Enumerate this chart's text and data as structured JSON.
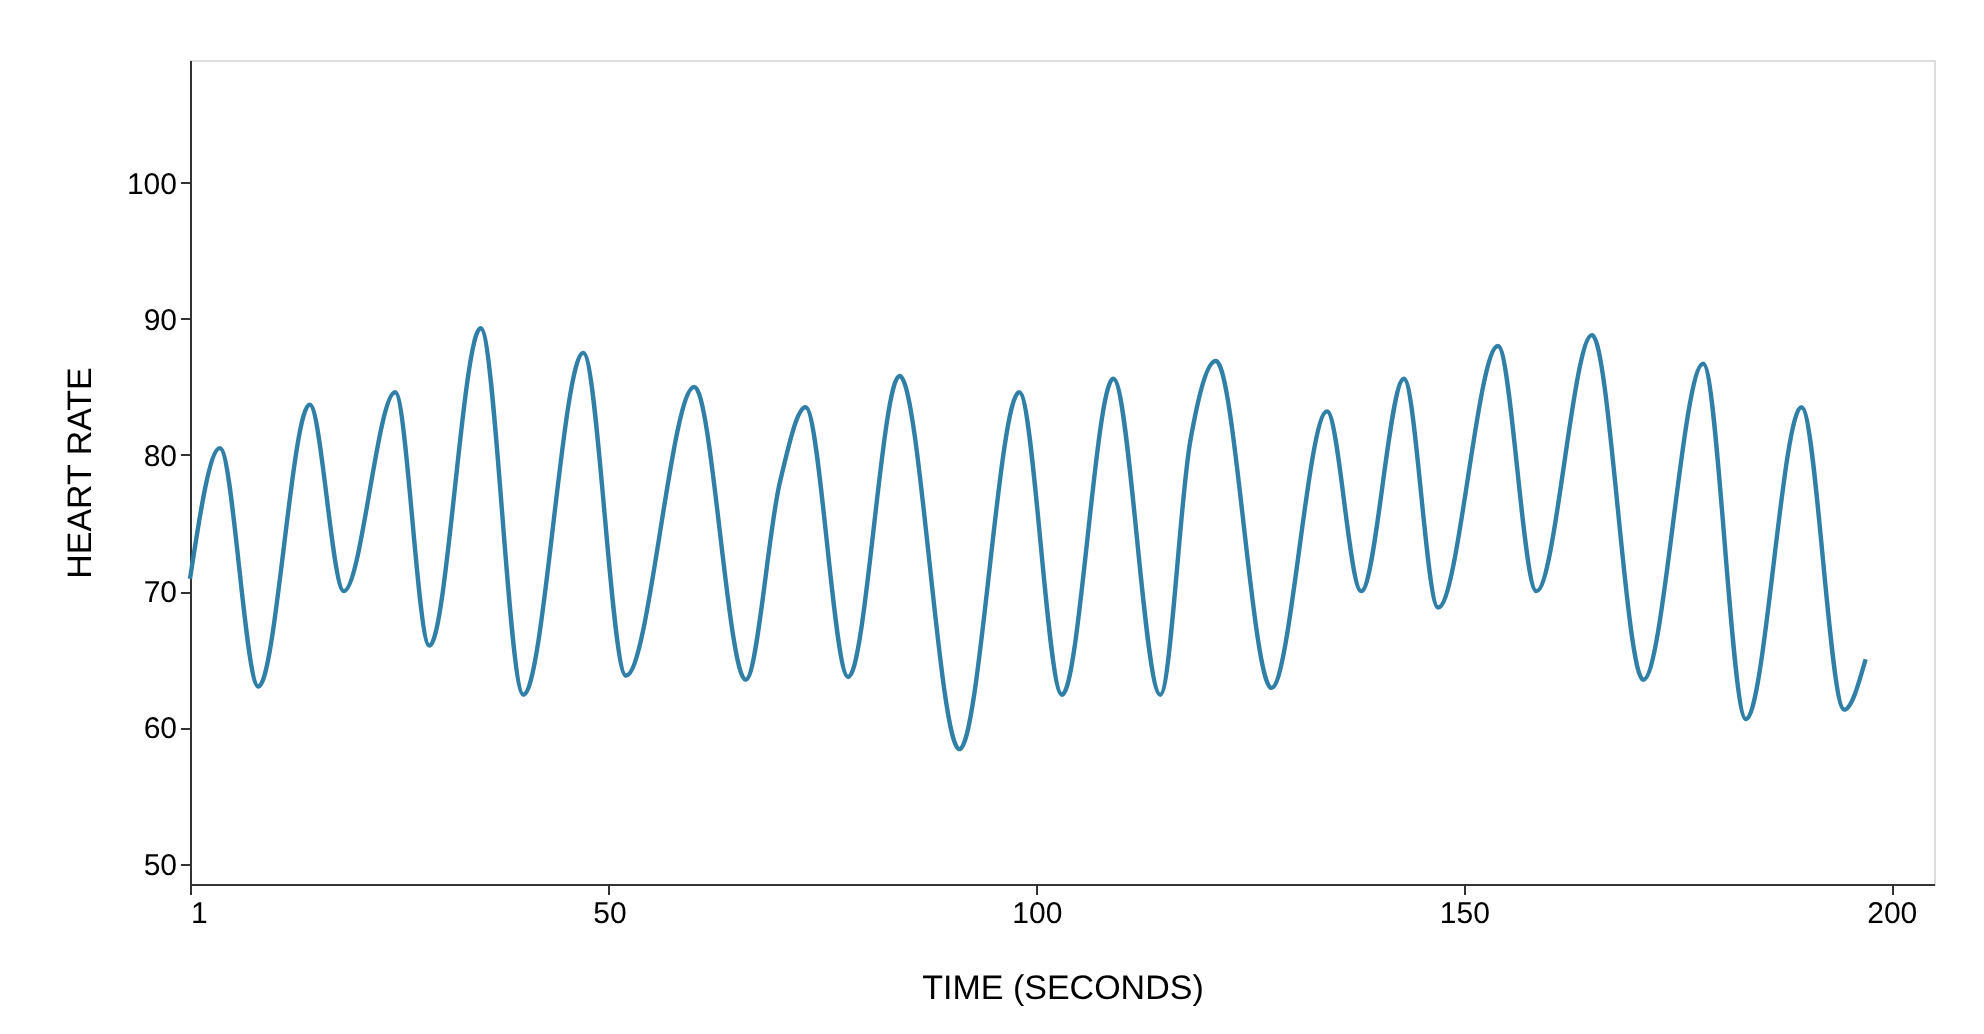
{
  "chart_data": {
    "type": "line",
    "xlabel": "TIME (SECONDS)",
    "ylabel": "HEART RATE",
    "xlim": [
      1,
      205
    ],
    "xticks": [
      1,
      50,
      100,
      150,
      200
    ],
    "ylim": [
      48.5,
      109
    ],
    "yticks": [
      50,
      60,
      70,
      80,
      90,
      100
    ],
    "grid": false,
    "marker": "none",
    "line_style": "solid",
    "series": [
      {
        "color": "#2f7fa6",
        "x": [
          1,
          4.5,
          9,
          15,
          19,
          25,
          29,
          35,
          40,
          47,
          52,
          60,
          66,
          70,
          73,
          78,
          84,
          91,
          98,
          103,
          109,
          114.5,
          118,
          121,
          127.5,
          134,
          138,
          143,
          147,
          154,
          158.5,
          165,
          171,
          178,
          183,
          189.5,
          194.5,
          197
        ],
        "values": [
          70.9,
          80.5,
          63,
          83.7,
          70,
          84.6,
          66,
          89.3,
          62.4,
          87.5,
          63.8,
          85,
          63.5,
          78,
          83.5,
          63.7,
          85.8,
          58.4,
          84.6,
          62.4,
          85.6,
          62.4,
          81,
          86.9,
          62.9,
          83.2,
          70,
          85.6,
          68.8,
          88,
          70,
          88.8,
          63.5,
          86.7,
          60.6,
          83.5,
          61.3,
          65
        ]
      }
    ]
  }
}
